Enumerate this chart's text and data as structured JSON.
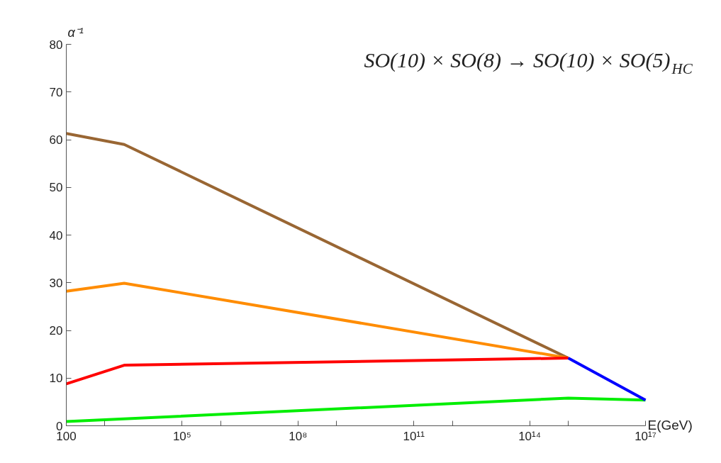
{
  "chart_data": {
    "type": "line",
    "title": "SO(10) × SO(8) → SO(10) × SO(5)$_{HC}$",
    "xlabel": "E(GeV)",
    "ylabel": "α⁻¹",
    "log": "x",
    "grid": false,
    "marker": "none",
    "line_style": "solid",
    "xlim": [
      100,
      1e+17
    ],
    "ylim": [
      0,
      80
    ],
    "xticks": [
      {
        "value": 100,
        "label": "100"
      },
      {
        "value": 1000,
        "label": null
      },
      {
        "value": 100000,
        "label": "10⁵"
      },
      {
        "value": 1000000,
        "label": null
      },
      {
        "value": 100000000,
        "label": "10⁸"
      },
      {
        "value": 1000000000,
        "label": null
      },
      {
        "value": 100000000000,
        "label": "10¹¹"
      },
      {
        "value": 1000000000000,
        "label": null
      },
      {
        "value": 100000000000000,
        "label": "10¹⁴"
      },
      {
        "value": 1000000000000000,
        "label": null
      },
      {
        "value": 100000000000000000,
        "label": "10¹⁷"
      }
    ],
    "yticks": [
      0,
      10,
      20,
      30,
      40,
      50,
      60,
      70,
      80
    ],
    "series": [
      {
        "color": "#996633",
        "x": [
          100,
          3162,
          1000000000000000.0
        ],
        "values": [
          61.3,
          59.0,
          14.2
        ]
      },
      {
        "color": "#ff8c00",
        "x": [
          100,
          3162,
          1000000000000000.0
        ],
        "values": [
          28.2,
          29.9,
          14.2
        ]
      },
      {
        "color": "#ff0000",
        "x": [
          100,
          3162,
          1000000000000000.0
        ],
        "values": [
          8.8,
          12.7,
          14.2
        ]
      },
      {
        "color": "#00ee00",
        "x": [
          100,
          1000000000000000.0,
          1e+17
        ],
        "values": [
          0.9,
          5.8,
          5.4
        ]
      },
      {
        "color": "#0000ff",
        "x": [
          1000000000000000.0,
          1e+17
        ],
        "values": [
          14.2,
          5.4
        ]
      }
    ]
  }
}
